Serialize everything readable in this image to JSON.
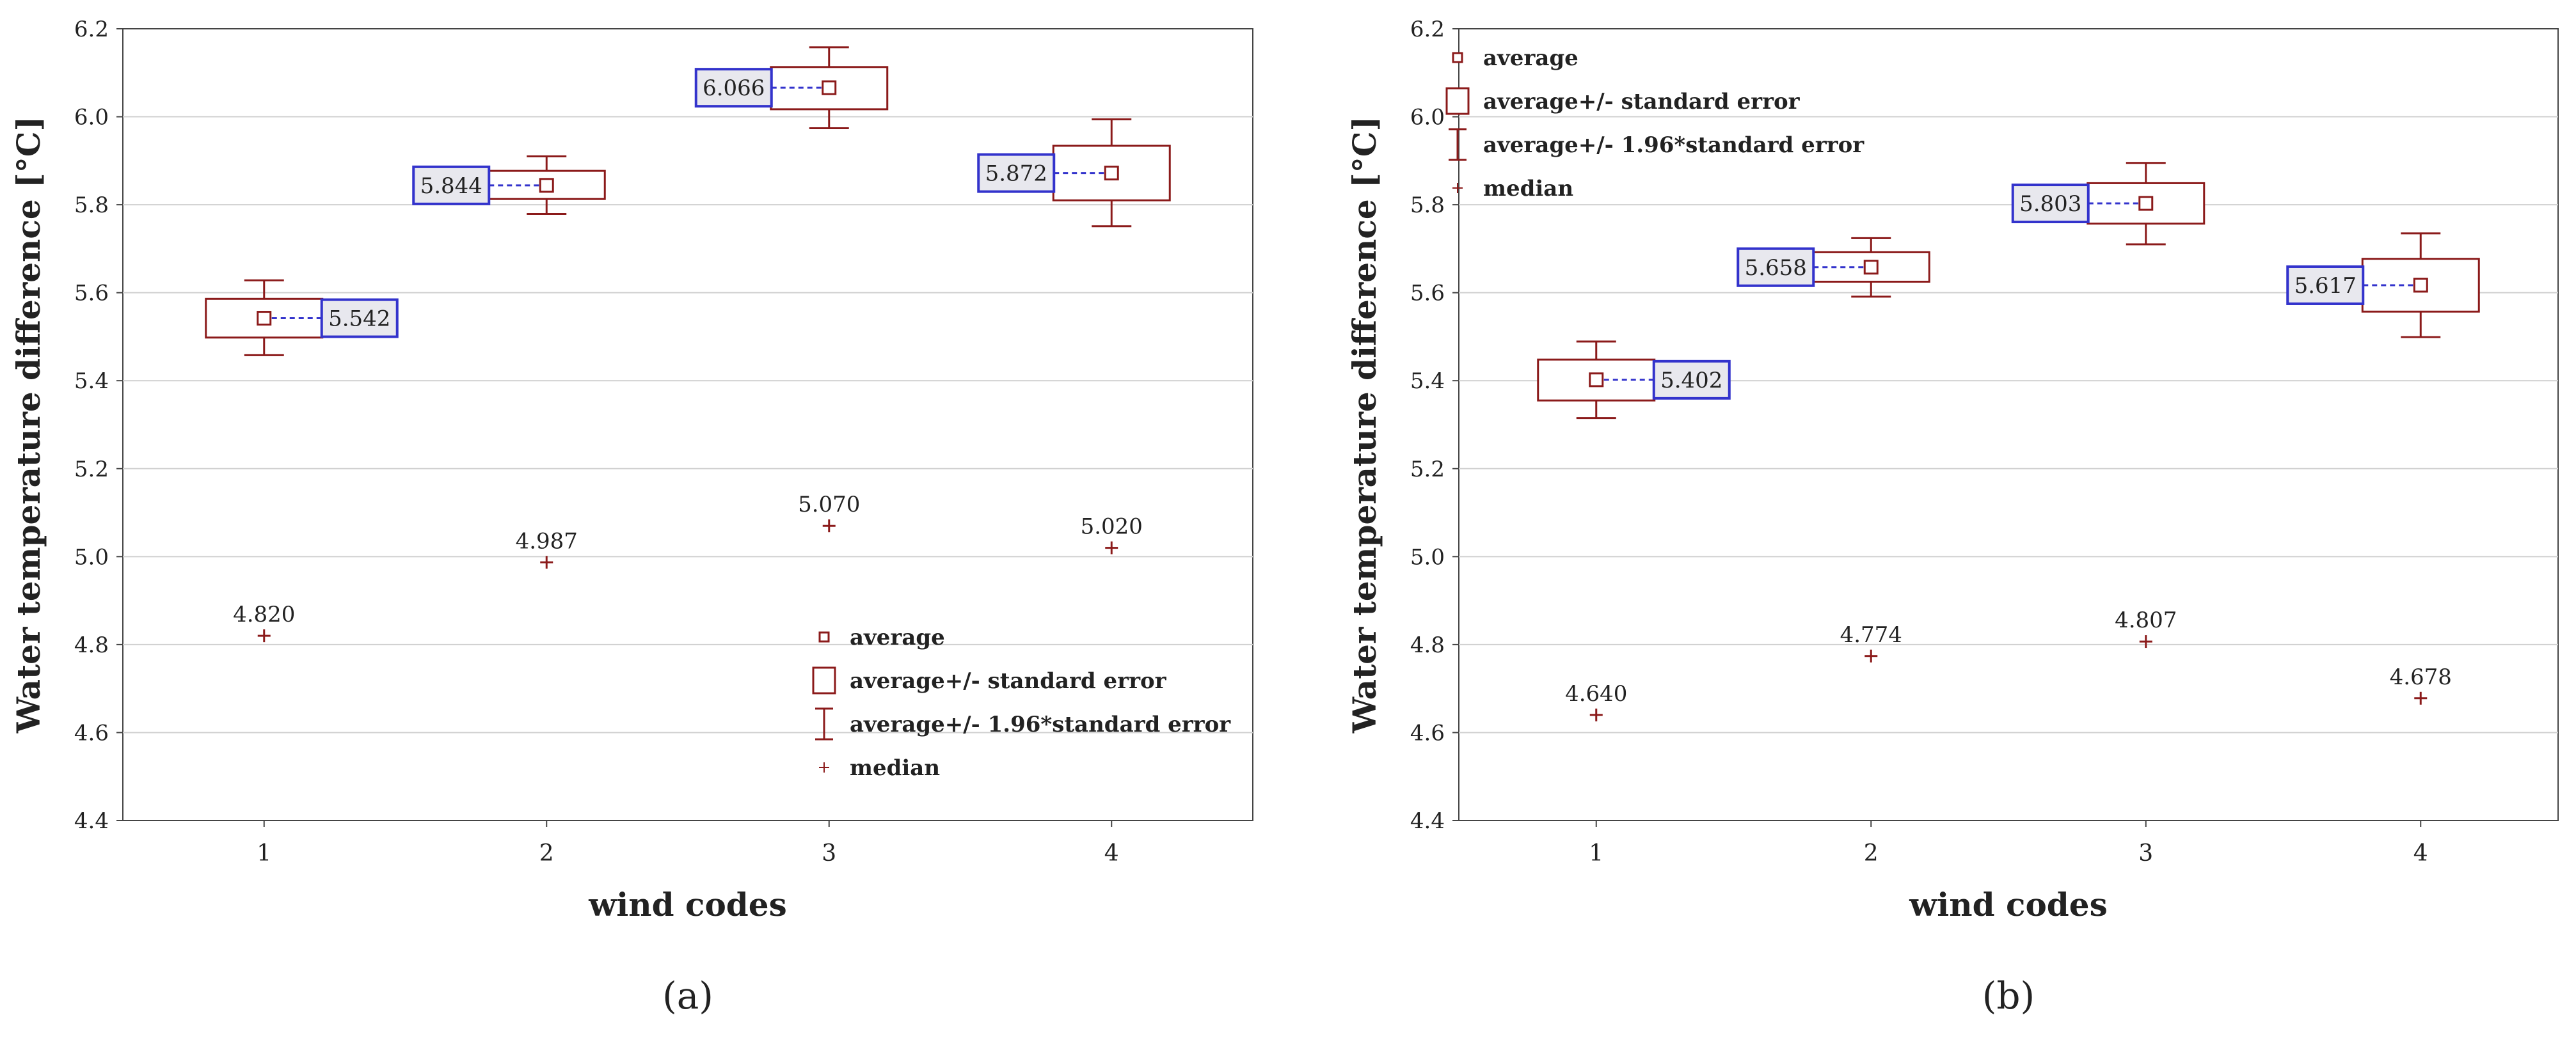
{
  "figure": {
    "panels": [
      "a",
      "b"
    ]
  },
  "colors": {
    "mark": "#8b1a1a",
    "label_border": "#3333cc",
    "label_fill": "#e8e8ee",
    "grid": "#d0d0d0",
    "axis": "#444444",
    "text": "#222222"
  },
  "chart_data": [
    {
      "type": "box",
      "panel_label": "(a)",
      "panel_letter": "a",
      "xlabel": "wind codes",
      "ylabel": "Water temperature difference [°C]",
      "ylim": [
        4.4,
        6.2
      ],
      "yticks": [
        "4.4",
        "4.6",
        "4.8",
        "5.0",
        "5.2",
        "5.4",
        "5.6",
        "5.8",
        "6.0",
        "6.2"
      ],
      "categories": [
        "1",
        "2",
        "3",
        "4"
      ],
      "grid": "horizontal",
      "legend_position": "bottom-right",
      "legend": [
        "average",
        "average+/- standard error",
        "average+/- 1.96*standard error",
        "median"
      ],
      "groups": [
        {
          "code": "1",
          "mean": 5.542,
          "mean_label": "5.542",
          "se_low": 5.498,
          "se_high": 5.586,
          "ci_low": 5.458,
          "ci_high": 5.628,
          "median": 4.82,
          "median_label": "4.820",
          "label_side": "right"
        },
        {
          "code": "2",
          "mean": 5.844,
          "mean_label": "5.844",
          "se_low": 5.813,
          "se_high": 5.877,
          "ci_low": 5.779,
          "ci_high": 5.91,
          "median": 4.987,
          "median_label": "4.987",
          "label_side": "left"
        },
        {
          "code": "3",
          "mean": 6.066,
          "mean_label": "6.066",
          "se_low": 6.017,
          "se_high": 6.113,
          "ci_low": 5.974,
          "ci_high": 6.158,
          "median": 5.07,
          "median_label": "5.070",
          "label_side": "left"
        },
        {
          "code": "4",
          "mean": 5.872,
          "mean_label": "5.872",
          "se_low": 5.81,
          "se_high": 5.934,
          "ci_low": 5.751,
          "ci_high": 5.994,
          "median": 5.02,
          "median_label": "5.020",
          "label_side": "left"
        }
      ]
    },
    {
      "type": "box",
      "panel_label": "(b)",
      "panel_letter": "b",
      "xlabel": "wind codes",
      "ylabel": "Water temperature difference [°C]",
      "ylim": [
        4.4,
        6.2
      ],
      "yticks": [
        "4.4",
        "4.6",
        "4.8",
        "5.0",
        "5.2",
        "5.4",
        "5.6",
        "5.8",
        "6.0",
        "6.2"
      ],
      "categories": [
        "1",
        "2",
        "3",
        "4"
      ],
      "grid": "horizontal",
      "legend_position": "top-left",
      "legend": [
        "average",
        "average+/- standard error",
        "average+/- 1.96*standard error",
        "median"
      ],
      "groups": [
        {
          "code": "1",
          "mean": 5.402,
          "mean_label": "5.402",
          "se_low": 5.355,
          "se_high": 5.448,
          "ci_low": 5.315,
          "ci_high": 5.489,
          "median": 4.64,
          "median_label": "4.640",
          "label_side": "right"
        },
        {
          "code": "2",
          "mean": 5.658,
          "mean_label": "5.658",
          "se_low": 5.625,
          "se_high": 5.692,
          "ci_low": 5.591,
          "ci_high": 5.724,
          "median": 4.774,
          "median_label": "4.774",
          "label_side": "left"
        },
        {
          "code": "3",
          "mean": 5.803,
          "mean_label": "5.803",
          "se_low": 5.757,
          "se_high": 5.849,
          "ci_low": 5.71,
          "ci_high": 5.895,
          "median": 4.807,
          "median_label": "4.807",
          "label_side": "left"
        },
        {
          "code": "4",
          "mean": 5.617,
          "mean_label": "5.617",
          "se_low": 5.557,
          "se_high": 5.677,
          "ci_low": 5.499,
          "ci_high": 5.735,
          "median": 4.678,
          "median_label": "4.678",
          "label_side": "left"
        }
      ]
    }
  ]
}
